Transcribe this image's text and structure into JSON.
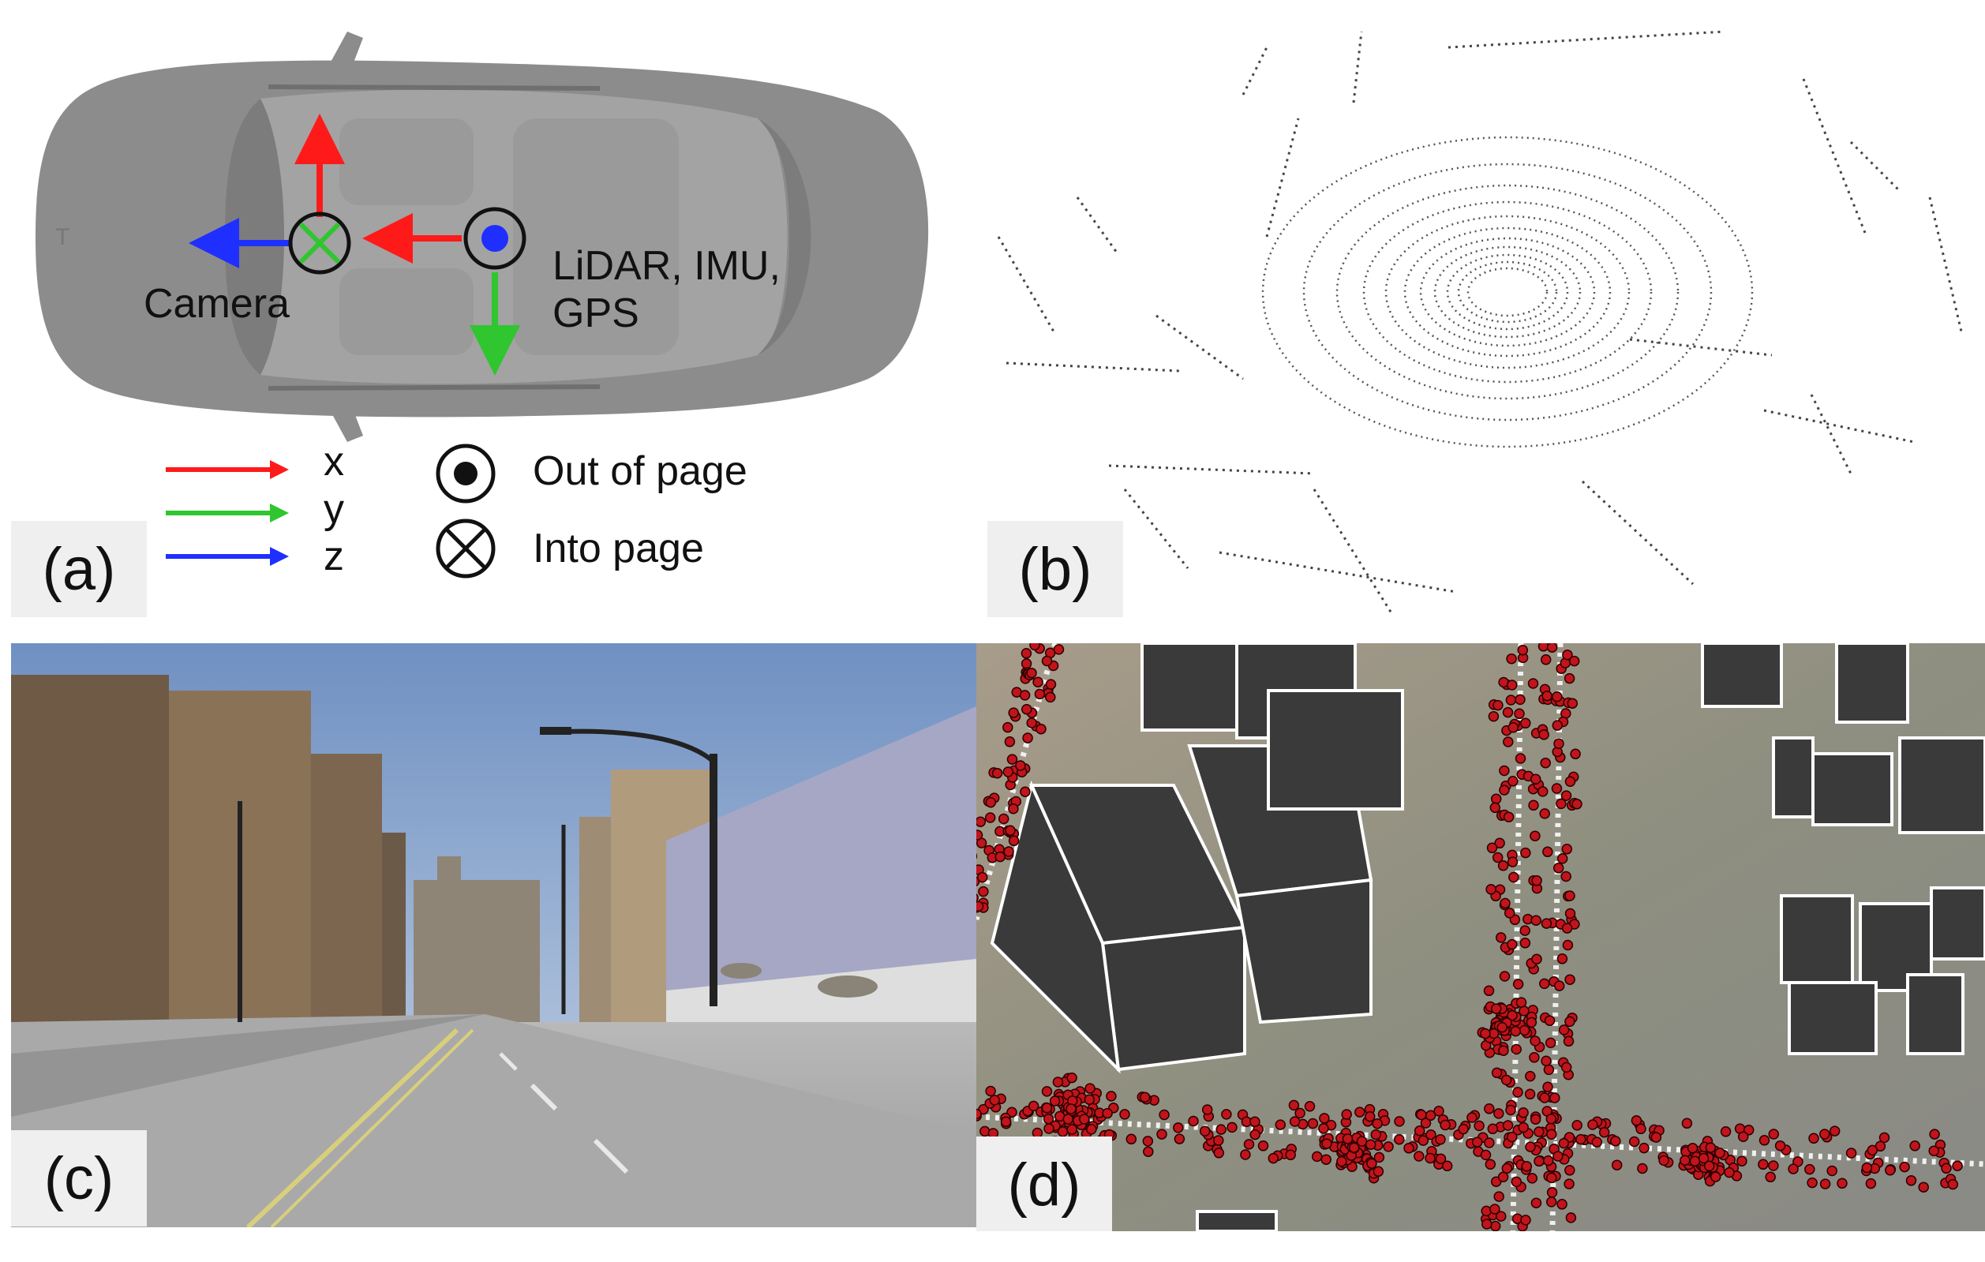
{
  "panel_a": {
    "tag": "(a)",
    "camera_label": "Camera",
    "lidar_label_line1": "LiDAR, IMU,",
    "lidar_label_line2": "GPS",
    "legend": {
      "x": "x",
      "y": "y",
      "z": "z",
      "out_of_page": "Out of page",
      "into_page": "Into page"
    },
    "colors": {
      "x": "#ff1a1a",
      "y": "#2fc62f",
      "z": "#1f2fff",
      "car": "#8c8c8c"
    }
  },
  "panel_b": {
    "tag": "(b)"
  },
  "panel_c": {
    "tag": "(c)"
  },
  "panel_d": {
    "tag": "(d)",
    "colors": {
      "point": "#c2141b",
      "building": "#3a3a3a"
    }
  }
}
